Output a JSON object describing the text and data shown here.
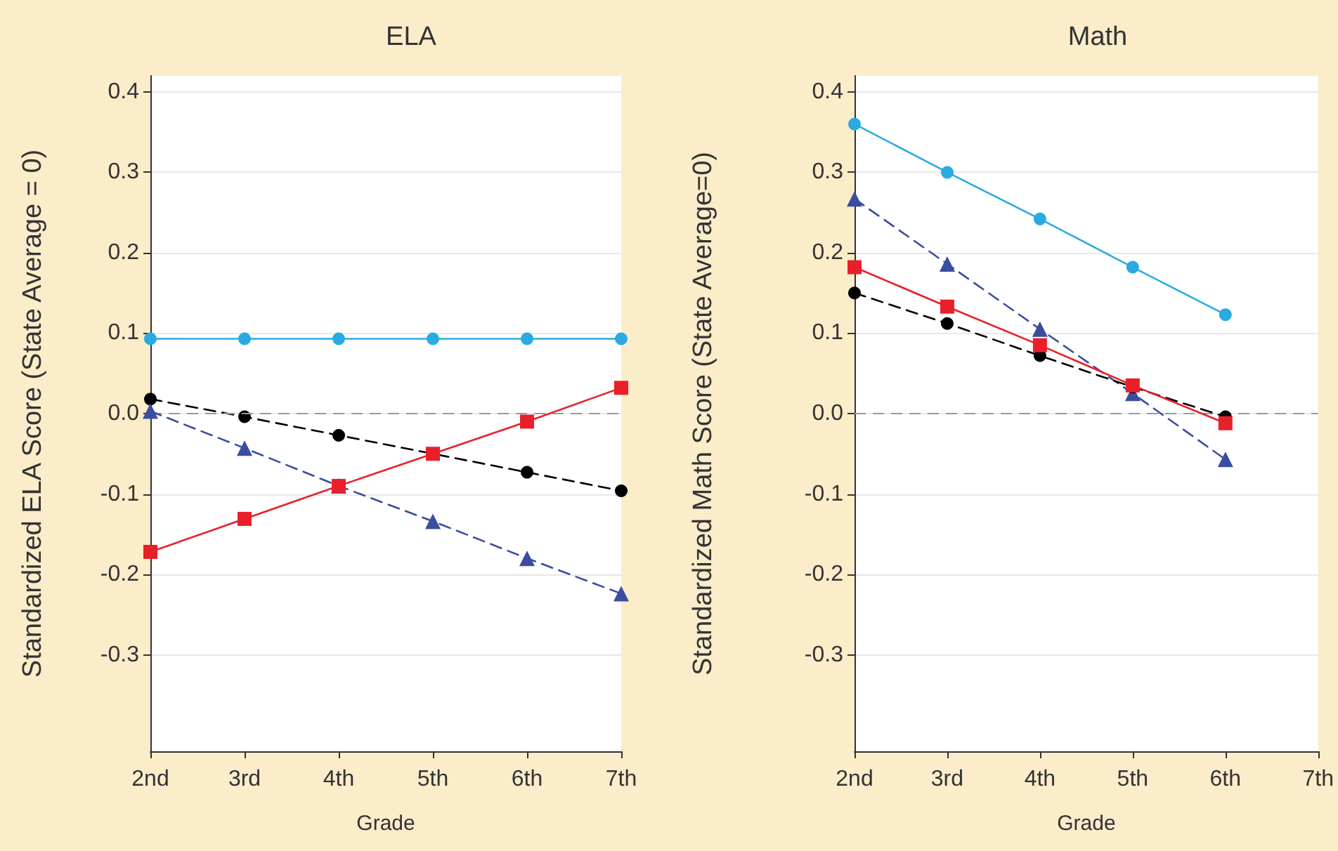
{
  "chart_data": [
    {
      "type": "line",
      "title": "ELA",
      "xlabel": "Grade",
      "ylabel": "Standardized ELA Score (State Average = 0)",
      "categories": [
        "2nd",
        "3rd",
        "4th",
        "5th",
        "6th",
        "7th"
      ],
      "ylim": [
        -0.42,
        0.42
      ],
      "yticks": [
        -0.3,
        -0.2,
        -0.1,
        {
          "value": 0,
          "label": "0.0"
        },
        0.1,
        0.2,
        0.3,
        0.4
      ],
      "grid": "y",
      "ref_lines": [
        {
          "axis": "y",
          "value": 0,
          "color": "#999999",
          "line_style": "dashed"
        }
      ],
      "series": [
        {
          "color": "#29abe2",
          "marker": "circle",
          "line_style": "solid",
          "values": [
            0.093,
            0.093,
            0.093,
            0.093,
            0.093,
            0.093
          ]
        },
        {
          "color": "#000000",
          "marker": "circle",
          "line_style": "dashed",
          "values": [
            0.018,
            -0.004,
            -0.027,
            -0.05,
            -0.073,
            -0.096
          ]
        },
        {
          "color": "#3a4da0",
          "marker": "triangle",
          "line_style": "dashed",
          "values": [
            0.003,
            -0.043,
            -0.09,
            -0.134,
            -0.18,
            -0.224
          ]
        },
        {
          "color": "#e8202a",
          "marker": "square",
          "line_style": "solid",
          "values": [
            -0.172,
            -0.131,
            -0.09,
            -0.05,
            -0.01,
            0.032
          ]
        }
      ]
    },
    {
      "type": "line",
      "title": "Math",
      "xlabel": "Grade",
      "ylabel": "Standardized Math Score (State Average=0)",
      "categories": [
        "2nd",
        "3rd",
        "4th",
        "5th",
        "6th",
        "7th"
      ],
      "ylim": [
        -0.42,
        0.42
      ],
      "yticks": [
        -0.3,
        -0.2,
        -0.1,
        {
          "value": 0,
          "label": "0.0"
        },
        0.1,
        0.2,
        0.3,
        0.4
      ],
      "grid": "y",
      "ref_lines": [
        {
          "axis": "y",
          "value": 0,
          "color": "#999999",
          "line_style": "dashed"
        }
      ],
      "series": [
        {
          "color": "#29abe2",
          "marker": "circle",
          "line_style": "solid",
          "values": [
            0.36,
            0.3,
            0.242,
            0.182,
            0.123,
            null
          ]
        },
        {
          "color": "#3a4da0",
          "marker": "triangle",
          "line_style": "dashed",
          "values": [
            0.267,
            0.186,
            0.105,
            0.025,
            -0.057,
            null
          ]
        },
        {
          "color": "#000000",
          "marker": "circle",
          "line_style": "dashed",
          "values": [
            0.15,
            0.112,
            0.072,
            0.033,
            -0.004,
            null
          ]
        },
        {
          "color": "#e8202a",
          "marker": "square",
          "line_style": "solid",
          "values": [
            0.182,
            0.133,
            0.085,
            0.035,
            -0.012,
            null
          ]
        }
      ]
    }
  ]
}
